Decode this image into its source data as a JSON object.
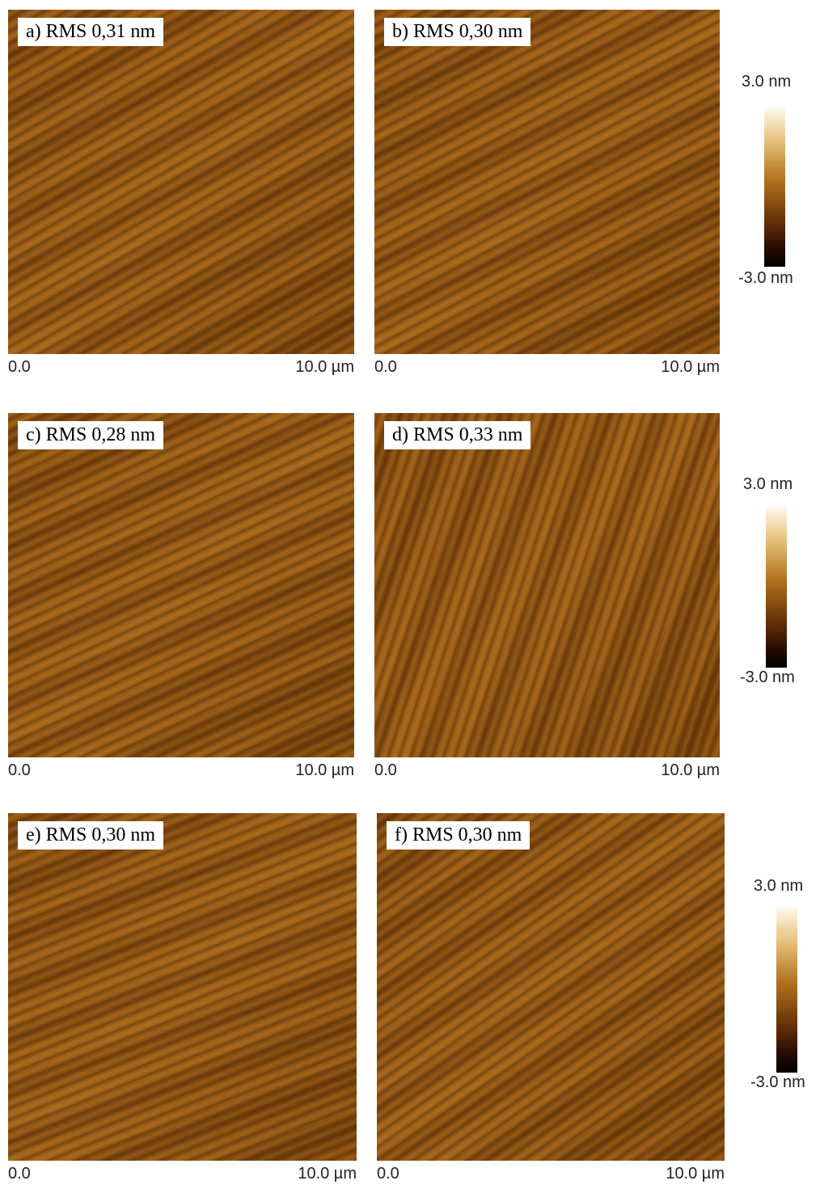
{
  "rows": [
    {
      "panels": [
        {
          "label": "a) RMS 0,31 nm",
          "x_start": "0.0",
          "x_end": "10.0 µm"
        },
        {
          "label": "b) RMS 0,30 nm",
          "x_start": "0.0",
          "x_end": "10.0 µm"
        }
      ],
      "colorbar": {
        "max": "3.0 nm",
        "min": "-3.0 nm"
      }
    },
    {
      "panels": [
        {
          "label": "c) RMS 0,28 nm",
          "x_start": "0.0",
          "x_end": "10.0 µm"
        },
        {
          "label": "d) RMS 0,33 nm",
          "x_start": "0.0",
          "x_end": "10.0 µm"
        }
      ],
      "colorbar": {
        "max": "3.0 nm",
        "min": "-3.0 nm"
      }
    },
    {
      "panels": [
        {
          "label": "e) RMS 0,30 nm",
          "x_start": "0.0",
          "x_end": "10.0 µm"
        },
        {
          "label": "f) RMS 0,30 nm",
          "x_start": "0.0",
          "x_end": "10.0 µm"
        }
      ],
      "colorbar": {
        "max": "3.0 nm",
        "min": "-3.0 nm"
      }
    }
  ]
}
